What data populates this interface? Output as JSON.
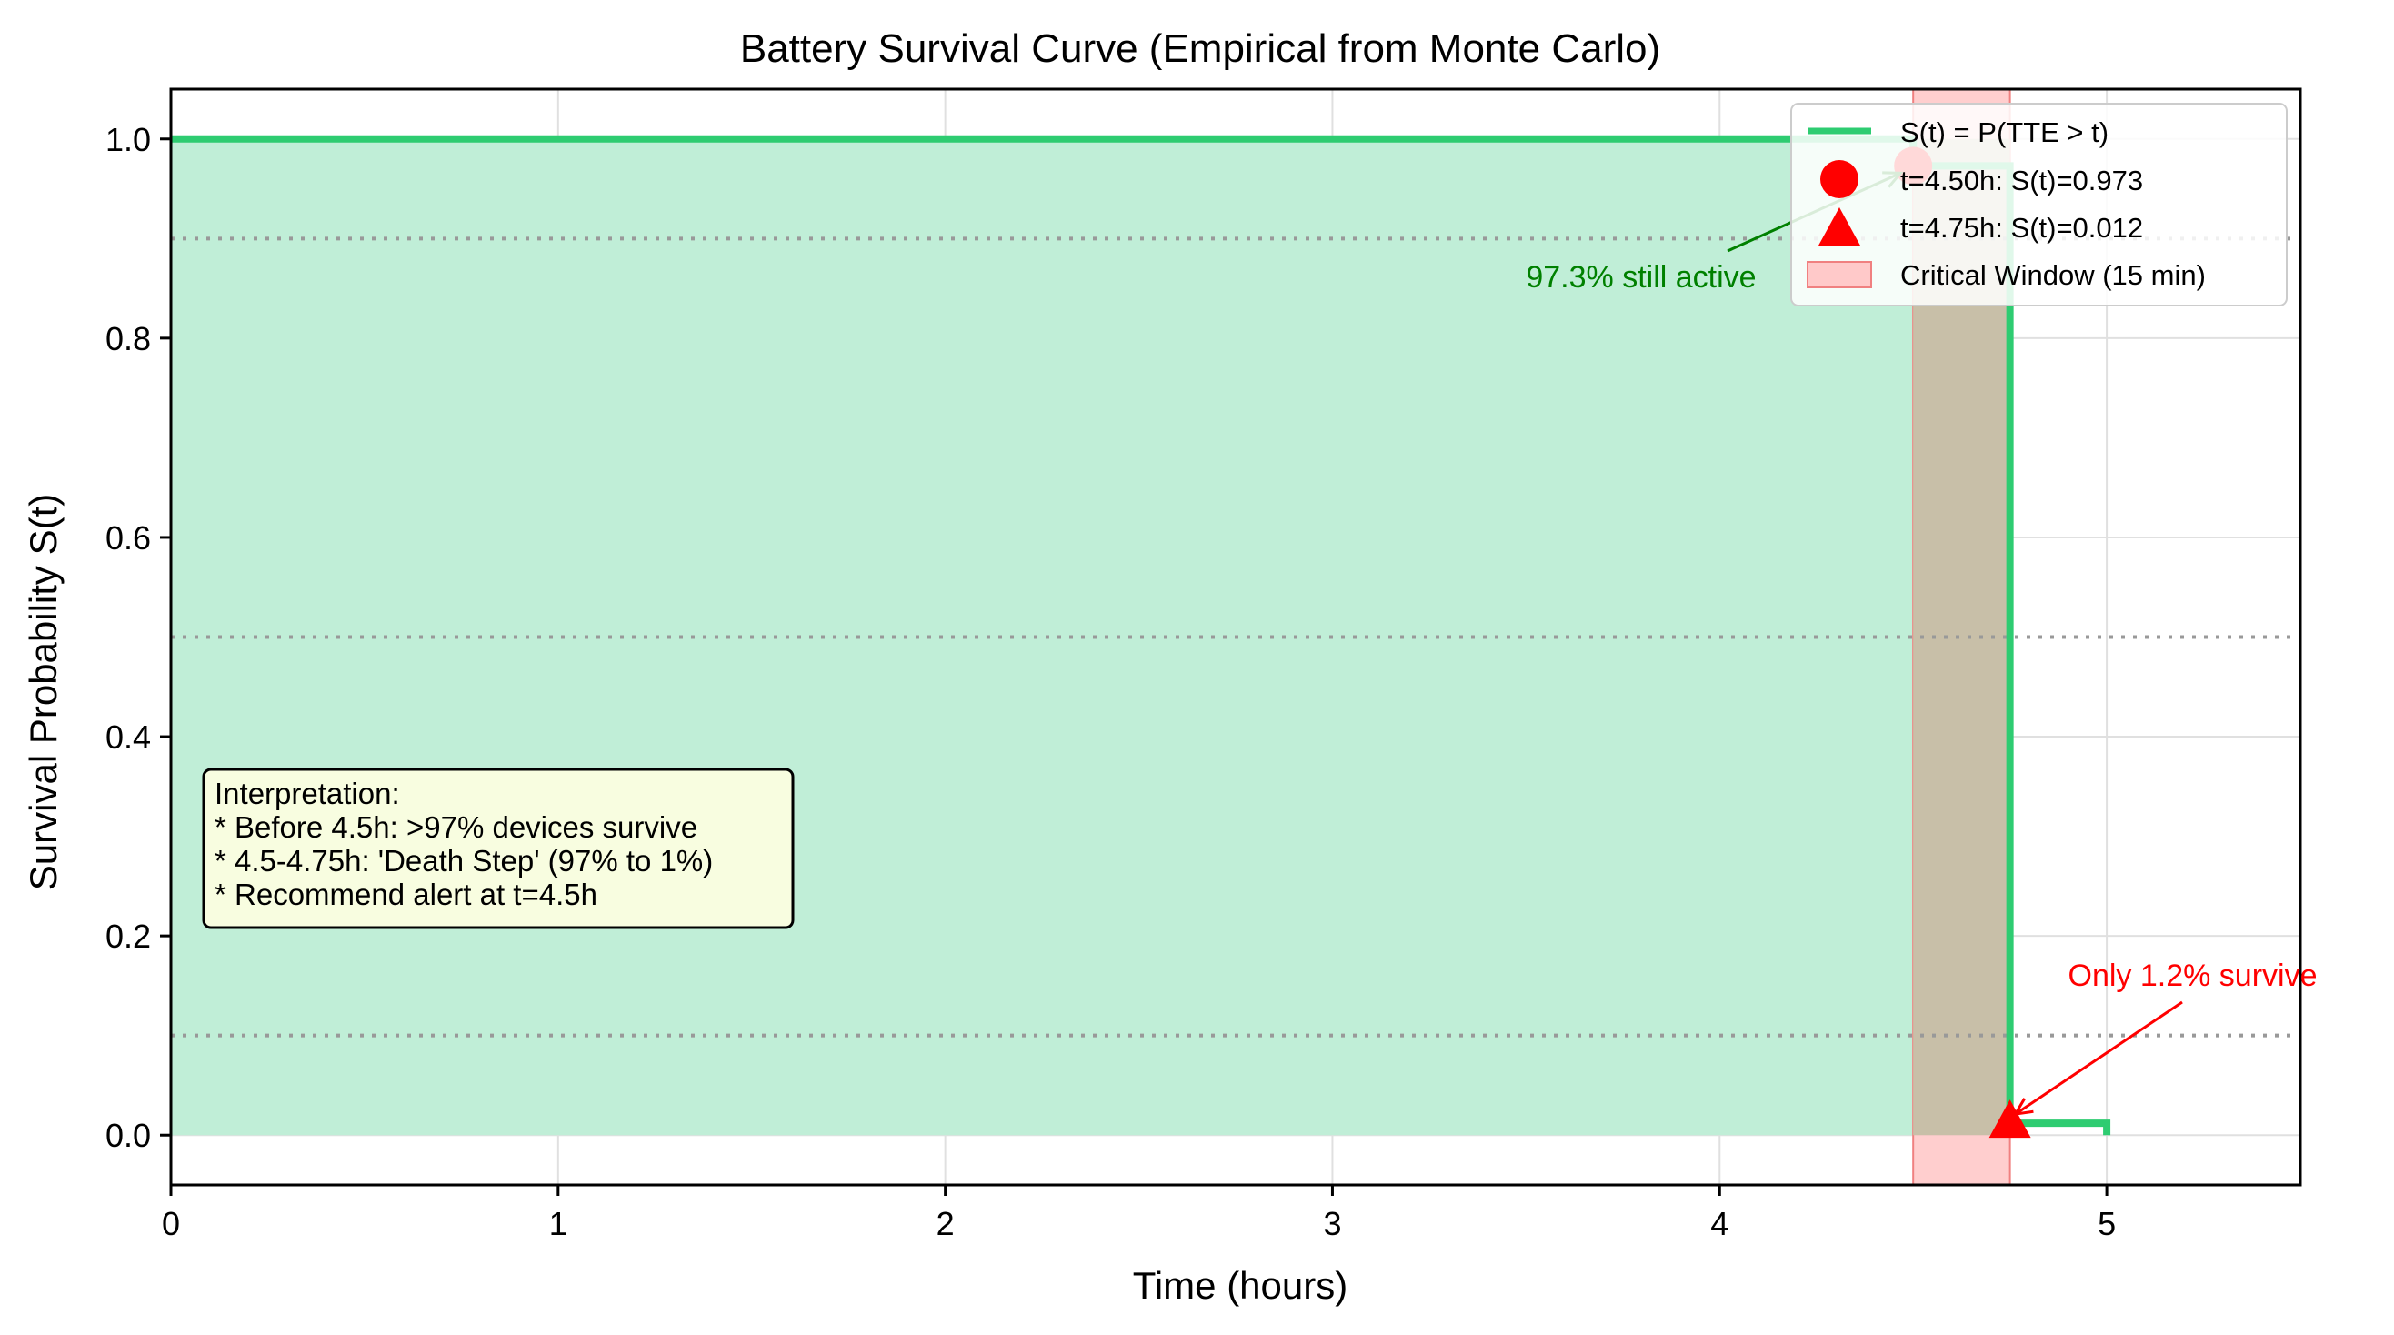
{
  "chart_data": {
    "type": "line",
    "title": "Battery Survival Curve (Empirical from Monte Carlo)",
    "xlabel": "Time (hours)",
    "ylabel": "Survival Probability S(t)",
    "xlim": [
      0,
      5.5
    ],
    "ylim": [
      -0.05,
      1.05
    ],
    "xticks": [
      0,
      1,
      2,
      3,
      4,
      5
    ],
    "xtick_labels": [
      "0",
      "1",
      "2",
      "3",
      "4",
      "5"
    ],
    "yticks": [
      0.0,
      0.2,
      0.4,
      0.6,
      0.8,
      1.0
    ],
    "ytick_labels": [
      "0.0",
      "0.2",
      "0.4",
      "0.6",
      "0.8",
      "1.0"
    ],
    "grid": true,
    "legend_position": "top-right",
    "reference_lines_y": [
      0.9,
      0.5,
      0.1
    ],
    "series": [
      {
        "name": "S(t) = P(TTE > t)",
        "step": true,
        "filled": true,
        "x": [
          0,
          4.5,
          4.5,
          4.75,
          4.75,
          5.0,
          5.0
        ],
        "y": [
          1.0,
          1.0,
          0.973,
          0.973,
          0.012,
          0.012,
          0.0
        ]
      }
    ],
    "markers": [
      {
        "name": "t=4.50h: S(t)=0.973",
        "shape": "circle",
        "x": 4.5,
        "y": 0.973
      },
      {
        "name": "t=4.75h: S(t)=0.012",
        "shape": "triangle",
        "x": 4.75,
        "y": 0.012
      }
    ],
    "shaded_region": {
      "name": "Critical Window (15 min)",
      "x_start": 4.5,
      "x_end": 4.75
    },
    "annotations": [
      {
        "text": "97.3% still active",
        "x": 3.5,
        "y": 0.87,
        "arrow_to": [
          4.5,
          0.973
        ]
      },
      {
        "text": "Only 1.2% survive",
        "x": 4.9,
        "y": 0.16,
        "arrow_to": [
          4.75,
          0.012
        ]
      }
    ],
    "text_box": [
      "Interpretation:",
      "* Before 4.5h: >97% devices survive",
      "* 4.5-4.75h: 'Death Step' (97% to 1%)",
      "* Recommend alert at t=4.5h"
    ]
  },
  "colors": {
    "curve": "#2ecc71",
    "fill": "#c0eed7",
    "marker": "#ff0000",
    "window_fill": "#ffc9c9",
    "window_edge": "#f08080",
    "annot_green": "#008000",
    "annot_red": "#ff0000",
    "grid": "#e0e0e0",
    "refline": "#999999",
    "textbox_bg": "#f8fde0"
  }
}
